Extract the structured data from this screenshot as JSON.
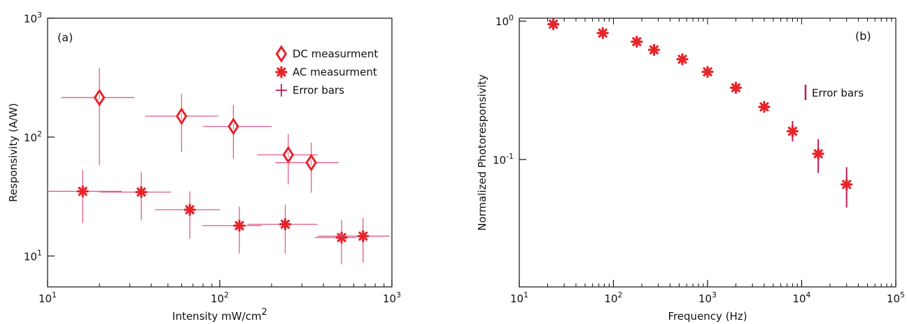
{
  "colors": {
    "marker": "#e8232a",
    "errorbar_a": "#e05a8a",
    "errorbar_b": "#c0185a",
    "axis": "#111111"
  },
  "chart_data": [
    {
      "type": "scatter",
      "panel_label": "(a)",
      "xlabel": "Intensity mW/cm",
      "xlabel_superscript": "2",
      "ylabel": "Responsivity (A/W)",
      "x_scale": "log",
      "y_scale": "log",
      "xlim": [
        10,
        1000
      ],
      "ylim": [
        5.5,
        1000
      ],
      "x_ticks": [
        {
          "value": 10,
          "base": "10",
          "exp": "1"
        },
        {
          "value": 100,
          "base": "10",
          "exp": "2"
        },
        {
          "value": 1000,
          "base": "10",
          "exp": "3"
        }
      ],
      "y_ticks": [
        {
          "value": 10,
          "base": "10",
          "exp": "1"
        },
        {
          "value": 100,
          "base": "10",
          "exp": "2"
        },
        {
          "value": 1000,
          "base": "10",
          "exp": "3"
        }
      ],
      "grid": false,
      "legend_position": "top-right",
      "legend": [
        {
          "label": "DC measurment",
          "marker": "diamond"
        },
        {
          "label": "AC measurment",
          "marker": "asterisk"
        },
        {
          "label": "Error bars",
          "marker": "cross"
        }
      ],
      "series": [
        {
          "name": "DC measurment",
          "marker": "diamond",
          "points": [
            {
              "x": 20,
              "y": 215,
              "xerr": [
                12,
                32
              ],
              "yerr": [
                58,
                380
              ]
            },
            {
              "x": 60,
              "y": 150,
              "xerr": [
                37,
                98
              ],
              "yerr": [
                75,
                232
              ]
            },
            {
              "x": 120,
              "y": 123,
              "xerr": [
                80,
                200
              ],
              "yerr": [
                66,
                187
              ]
            },
            {
              "x": 250,
              "y": 71,
              "xerr": [
                165,
                370
              ],
              "yerr": [
                40,
                106
              ]
            },
            {
              "x": 340,
              "y": 61,
              "xerr": [
                210,
                490
              ],
              "yerr": [
                34,
                90
              ]
            }
          ]
        },
        {
          "name": "AC measurment",
          "marker": "asterisk",
          "points": [
            {
              "x": 16,
              "y": 35,
              "xerr": [
                10,
                27
              ],
              "yerr": [
                19,
                53
              ]
            },
            {
              "x": 35,
              "y": 34.5,
              "xerr": [
                20,
                52
              ],
              "yerr": [
                20,
                51
              ]
            },
            {
              "x": 67,
              "y": 24.5,
              "xerr": [
                42,
                100
              ],
              "yerr": [
                14,
                35
              ]
            },
            {
              "x": 130,
              "y": 18,
              "xerr": [
                79,
                176
              ],
              "yerr": [
                10.5,
                26
              ]
            },
            {
              "x": 240,
              "y": 18.5,
              "xerr": [
                145,
                370
              ],
              "yerr": [
                10.5,
                27
              ]
            },
            {
              "x": 510,
              "y": 14.3,
              "xerr": [
                355,
                620
              ],
              "yerr": [
                8.5,
                20
              ]
            },
            {
              "x": 680,
              "y": 14.7,
              "xerr": [
                370,
                970
              ],
              "yerr": [
                8.8,
                21
              ]
            }
          ]
        }
      ]
    },
    {
      "type": "scatter",
      "panel_label": "(b)",
      "xlabel": "Frequency (Hz)",
      "ylabel": "Normalized Photoresponsivity",
      "x_scale": "log",
      "y_scale": "log",
      "xlim": [
        10,
        100000
      ],
      "ylim": [
        0.012,
        1.05
      ],
      "x_ticks": [
        {
          "value": 10,
          "base": "10",
          "exp": "1"
        },
        {
          "value": 100,
          "base": "10",
          "exp": "2"
        },
        {
          "value": 1000,
          "base": "10",
          "exp": "3"
        },
        {
          "value": 10000,
          "base": "10",
          "exp": "4"
        },
        {
          "value": 100000,
          "base": "10",
          "exp": "5"
        }
      ],
      "y_ticks": [
        {
          "value": 1,
          "base": "10",
          "exp": "0"
        },
        {
          "value": 0.1,
          "base": "10",
          "exp": "-1"
        }
      ],
      "grid": false,
      "legend_position": "top-right",
      "legend": [
        {
          "label": "Error bars",
          "marker": "vbar"
        }
      ],
      "series": [
        {
          "name": "Normalized Photoresponsivity",
          "marker": "asterisk",
          "points": [
            {
              "x": 23,
              "y": 0.95
            },
            {
              "x": 77,
              "y": 0.82
            },
            {
              "x": 177,
              "y": 0.71
            },
            {
              "x": 270,
              "y": 0.62
            },
            {
              "x": 540,
              "y": 0.53
            },
            {
              "x": 1000,
              "y": 0.43
            },
            {
              "x": 2000,
              "y": 0.33
            },
            {
              "x": 4000,
              "y": 0.24
            },
            {
              "x": 8000,
              "y": 0.16,
              "yerr": [
                0.135,
                0.19
              ]
            },
            {
              "x": 15000,
              "y": 0.11,
              "yerr": [
                0.08,
                0.14
              ]
            },
            {
              "x": 30000,
              "y": 0.066,
              "yerr": [
                0.045,
                0.088
              ]
            }
          ]
        }
      ]
    }
  ]
}
